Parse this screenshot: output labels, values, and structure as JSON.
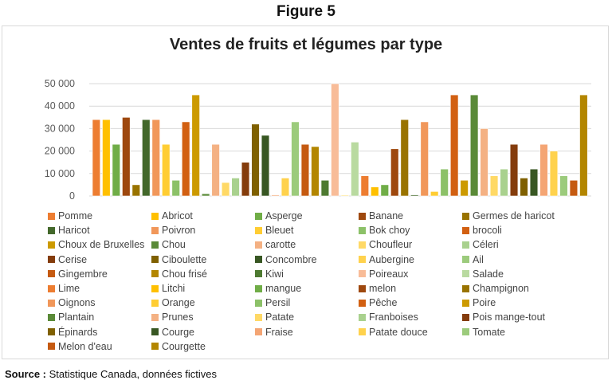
{
  "figure_label": "Figure 5",
  "source": {
    "label": "Source :",
    "text": "Statistique Canada, données fictives"
  },
  "chart_data": {
    "type": "bar",
    "title": "Ventes de fruits et légumes par type",
    "xlabel": "",
    "ylabel": "",
    "ylim": [
      0,
      50000
    ],
    "yticks": [
      "0",
      "10 000",
      "20 000",
      "30 000",
      "40 000",
      "50 000"
    ],
    "grid": true,
    "legend_position": "bottom",
    "bars": [
      {
        "name": "Pomme",
        "value": 34000,
        "color": "#ED7D31"
      },
      {
        "name": "Abricot",
        "value": 34000,
        "color": "#FFC000"
      },
      {
        "name": "Asperge",
        "value": 23000,
        "color": "#70AD47"
      },
      {
        "name": "Banane",
        "value": 35000,
        "color": "#9E480E"
      },
      {
        "name": "Germes de haricot",
        "value": 5000,
        "color": "#997300"
      },
      {
        "name": "Haricot",
        "value": 34000,
        "color": "#43682B"
      },
      {
        "name": "Poivron",
        "value": 34000,
        "color": "#F1975A"
      },
      {
        "name": "Bleuet",
        "value": 23000,
        "color": "#FFCD33"
      },
      {
        "name": "Bok choy",
        "value": 7000,
        "color": "#8CC168"
      },
      {
        "name": "brocoli",
        "value": 33000,
        "color": "#D26012"
      },
      {
        "name": "Choux de Bruxelles",
        "value": 45000,
        "color": "#CC9A00"
      },
      {
        "name": "Chou",
        "value": 1000,
        "color": "#5A8A38"
      },
      {
        "name": "carotte",
        "value": 23000,
        "color": "#F4B183"
      },
      {
        "name": "Choufleur",
        "value": 6000,
        "color": "#FFD966"
      },
      {
        "name": "Céleri",
        "value": 8000,
        "color": "#A9D18E"
      },
      {
        "name": "Cerise",
        "value": 15000,
        "color": "#843C0C"
      },
      {
        "name": "Ciboulette",
        "value": 32000,
        "color": "#7F6000"
      },
      {
        "name": "Concombre",
        "value": 27000,
        "color": "#385723"
      },
      {
        "name": "",
        "value": 500,
        "color": "#F4B183"
      },
      {
        "name": "Aubergine",
        "value": 8000,
        "color": "#FFD24D"
      },
      {
        "name": "Ail",
        "value": 33000,
        "color": "#9CCB7C"
      },
      {
        "name": "Gingembre",
        "value": 23000,
        "color": "#C55A11"
      },
      {
        "name": "Chou frisé",
        "value": 22000,
        "color": "#B38600"
      },
      {
        "name": "Kiwi",
        "value": 7000,
        "color": "#4E7A31"
      },
      {
        "name": "Poireaux",
        "value": 50000,
        "color": "#F8BC98"
      },
      {
        "name": "",
        "value": 500,
        "color": "#FFE699"
      },
      {
        "name": "Salade",
        "value": 24000,
        "color": "#B9DAA0"
      },
      {
        "name": "Lime",
        "value": 9000,
        "color": "#ED7D31"
      },
      {
        "name": "Litchi",
        "value": 4000,
        "color": "#FFC000"
      },
      {
        "name": "mangue",
        "value": 5000,
        "color": "#70AD47"
      },
      {
        "name": "melon",
        "value": 21000,
        "color": "#9E480E"
      },
      {
        "name": "Champignon",
        "value": 34000,
        "color": "#997300"
      },
      {
        "name": "",
        "value": 500,
        "color": "#43682B"
      },
      {
        "name": "Oignons",
        "value": 33000,
        "color": "#F1975A"
      },
      {
        "name": "Orange",
        "value": 2000,
        "color": "#FFCD33"
      },
      {
        "name": "Persil",
        "value": 12000,
        "color": "#8CC168"
      },
      {
        "name": "Pêche",
        "value": 45000,
        "color": "#D26012"
      },
      {
        "name": "Poire",
        "value": 7000,
        "color": "#CC9A00"
      },
      {
        "name": "Plantain",
        "value": 45000,
        "color": "#5A8A38"
      },
      {
        "name": "Prunes",
        "value": 30000,
        "color": "#F4B183"
      },
      {
        "name": "Patate",
        "value": 9000,
        "color": "#FFD966"
      },
      {
        "name": "Franboises",
        "value": 12000,
        "color": "#A9D18E"
      },
      {
        "name": "Pois mange-tout",
        "value": 23000,
        "color": "#843C0C"
      },
      {
        "name": "Épinards",
        "value": 8000,
        "color": "#7F6000"
      },
      {
        "name": "Courge",
        "value": 12000,
        "color": "#385723"
      },
      {
        "name": "Fraise",
        "value": 23000,
        "color": "#F4A574"
      },
      {
        "name": "Patate douce",
        "value": 20000,
        "color": "#FFD24D"
      },
      {
        "name": "Tomate",
        "value": 9000,
        "color": "#9CCB7C"
      },
      {
        "name": "Melon d'eau",
        "value": 7000,
        "color": "#C55A11"
      },
      {
        "name": "Courgette",
        "value": 45000,
        "color": "#B38600"
      }
    ],
    "legend": [
      {
        "label": "Pomme",
        "color": "#ED7D31"
      },
      {
        "label": "Abricot",
        "color": "#FFC000"
      },
      {
        "label": "Asperge",
        "color": "#70AD47"
      },
      {
        "label": "Banane",
        "color": "#9E480E"
      },
      {
        "label": "Germes de haricot",
        "color": "#997300"
      },
      {
        "label": "Haricot",
        "color": "#43682B"
      },
      {
        "label": "Poivron",
        "color": "#F1975A"
      },
      {
        "label": "Bleuet",
        "color": "#FFCD33"
      },
      {
        "label": "Bok choy",
        "color": "#8CC168"
      },
      {
        "label": "brocoli",
        "color": "#D26012"
      },
      {
        "label": "Choux de Bruxelles",
        "color": "#CC9A00"
      },
      {
        "label": "Chou",
        "color": "#5A8A38"
      },
      {
        "label": "carotte",
        "color": "#F4B183"
      },
      {
        "label": "Choufleur",
        "color": "#FFD966"
      },
      {
        "label": "Céleri",
        "color": "#A9D18E"
      },
      {
        "label": "Cerise",
        "color": "#843C0C"
      },
      {
        "label": "Ciboulette",
        "color": "#7F6000"
      },
      {
        "label": "Concombre",
        "color": "#385723"
      },
      {
        "label": "Aubergine",
        "color": "#FFD24D"
      },
      {
        "label": "Ail",
        "color": "#9CCB7C"
      },
      {
        "label": "Gingembre",
        "color": "#C55A11"
      },
      {
        "label": "Chou frisé",
        "color": "#B38600"
      },
      {
        "label": "Kiwi",
        "color": "#4E7A31"
      },
      {
        "label": "Poireaux",
        "color": "#F8BC98"
      },
      {
        "label": "Salade",
        "color": "#B9DAA0"
      },
      {
        "label": "Lime",
        "color": "#ED7D31"
      },
      {
        "label": "Litchi",
        "color": "#FFC000"
      },
      {
        "label": "mangue",
        "color": "#70AD47"
      },
      {
        "label": "melon",
        "color": "#9E480E"
      },
      {
        "label": "Champignon",
        "color": "#997300"
      },
      {
        "label": "Oignons",
        "color": "#F1975A"
      },
      {
        "label": "Orange",
        "color": "#FFCD33"
      },
      {
        "label": "Persil",
        "color": "#8CC168"
      },
      {
        "label": "Pêche",
        "color": "#D26012"
      },
      {
        "label": "Poire",
        "color": "#CC9A00"
      },
      {
        "label": "Plantain",
        "color": "#5A8A38"
      },
      {
        "label": "Prunes",
        "color": "#F4B183"
      },
      {
        "label": "Patate",
        "color": "#FFD966"
      },
      {
        "label": "Franboises",
        "color": "#A9D18E"
      },
      {
        "label": "Pois mange-tout",
        "color": "#843C0C"
      },
      {
        "label": "Épinards",
        "color": "#7F6000"
      },
      {
        "label": "Courge",
        "color": "#385723"
      },
      {
        "label": "Fraise",
        "color": "#F4A574"
      },
      {
        "label": "Patate douce",
        "color": "#FFD24D"
      },
      {
        "label": "Tomate",
        "color": "#9CCB7C"
      },
      {
        "label": "Melon d'eau",
        "color": "#C55A11"
      },
      {
        "label": "Courgette",
        "color": "#B38600"
      }
    ]
  }
}
